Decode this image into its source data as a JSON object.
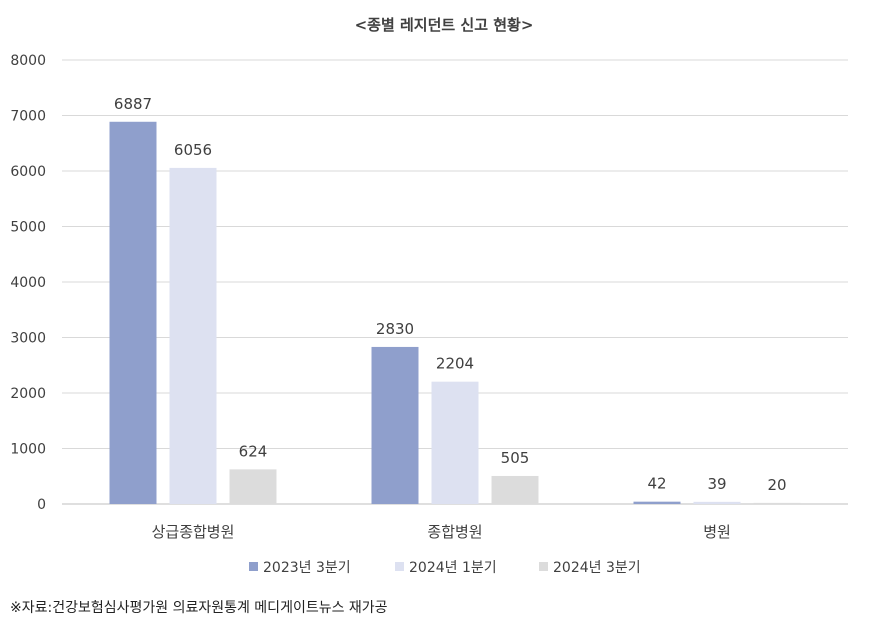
{
  "chart_data": {
    "type": "bar",
    "title": "<종별 레지던트 신고 현황>",
    "xlabel": "",
    "ylabel": "",
    "ylim": [
      0,
      8000
    ],
    "yticks": [
      "0",
      "1000",
      "2000",
      "3000",
      "4000",
      "5000",
      "6000",
      "7000",
      "8000"
    ],
    "categories": [
      "상급종합병원",
      "종합병원",
      "병원"
    ],
    "series": [
      {
        "name": "2023년 3분기",
        "values": [
          6887,
          2830,
          42
        ],
        "color": "#8f9fcc"
      },
      {
        "name": "2024년 1분기",
        "values": [
          6056,
          2204,
          39
        ],
        "color": "#dde1f1"
      },
      {
        "name": "2024년 3분기",
        "values": [
          624,
          505,
          20
        ],
        "color": "#dcdcdc"
      }
    ],
    "grid": true,
    "legend": "bottom"
  },
  "source": "※자료:건강보험심사평가원 의료자원통계 메디게이트뉴스 재가공"
}
